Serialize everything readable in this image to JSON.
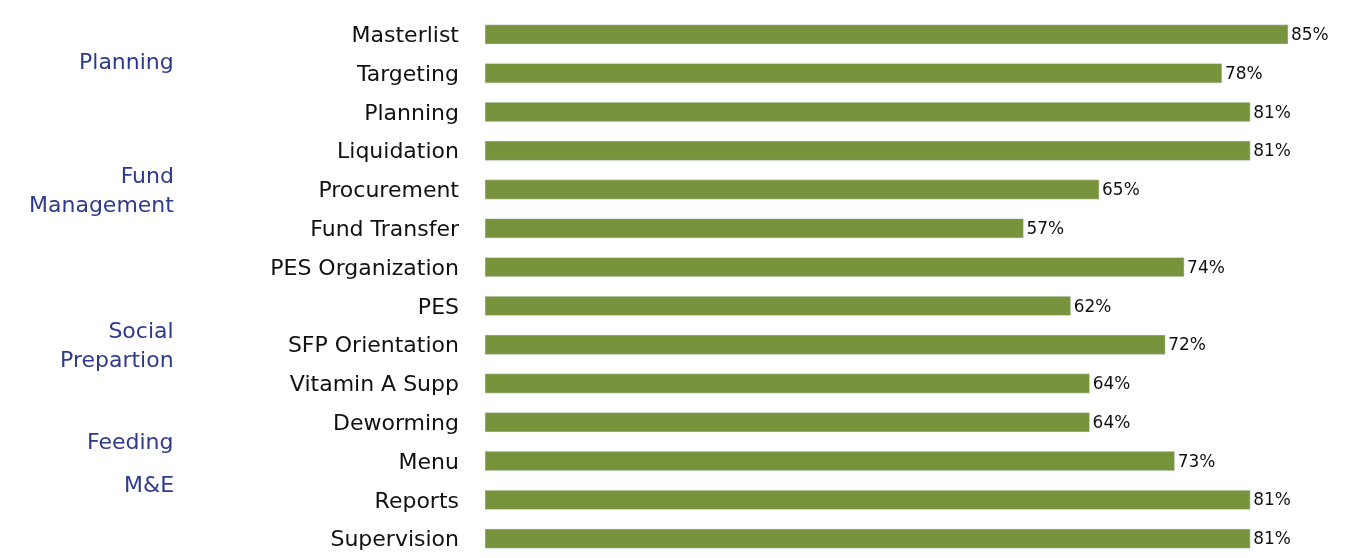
{
  "chart_data": {
    "type": "bar",
    "orientation": "horizontal",
    "data_labels": true,
    "categories": [
      "Masterlist",
      "Targeting",
      "Planning",
      "Liquidation",
      "Procurement",
      "Fund Transfer",
      "PES Organization",
      "PES",
      "SFP Orientation",
      "Vitamin A Supp",
      "Deworming",
      "Menu",
      "Reports",
      "Supervision"
    ],
    "values": [
      85,
      78,
      81,
      81,
      65,
      57,
      74,
      62,
      72,
      64,
      64,
      73,
      81,
      81
    ],
    "value_labels": [
      "85%",
      "78%",
      "81%",
      "81%",
      "65%",
      "57%",
      "74%",
      "62%",
      "72%",
      "64%",
      "64%",
      "73%",
      "81%",
      "81%"
    ],
    "color": "#77933c",
    "annotations": [
      "Planning",
      "Fund\nManagement",
      "Social\nPrepartion",
      "Feeding",
      "M&E"
    ]
  }
}
